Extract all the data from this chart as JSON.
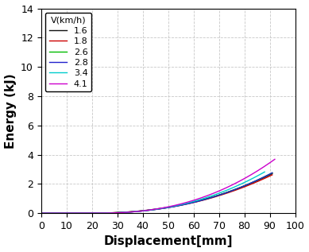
{
  "title": "",
  "xlabel": "Displacement[mm]",
  "ylabel": "Energy (kJ)",
  "xlim": [
    0,
    100
  ],
  "ylim": [
    0,
    14
  ],
  "xticks": [
    0,
    10,
    20,
    30,
    40,
    50,
    60,
    70,
    80,
    90,
    100
  ],
  "yticks": [
    0,
    2,
    4,
    6,
    8,
    10,
    12,
    14
  ],
  "legend_title": "V(km/h)",
  "series": [
    {
      "label": "1.6",
      "color": "#111111",
      "k": 0.00014,
      "n": 2.3,
      "x0": 18.0,
      "x_end": 91
    },
    {
      "label": "1.8",
      "color": "#cc0000",
      "k": 0.000138,
      "n": 2.3,
      "x0": 18.5,
      "x_end": 91
    },
    {
      "label": "2.6",
      "color": "#00bb00",
      "k": 0.000135,
      "n": 2.32,
      "x0": 19.0,
      "x_end": 91
    },
    {
      "label": "2.8",
      "color": "#2222cc",
      "k": 0.000132,
      "n": 2.33,
      "x0": 19.5,
      "x_end": 91
    },
    {
      "label": "3.4",
      "color": "#00cccc",
      "k": 0.000128,
      "n": 2.37,
      "x0": 20.0,
      "x_end": 88
    },
    {
      "label": "4.1",
      "color": "#cc00cc",
      "k": 0.00012,
      "n": 2.42,
      "x0": 20.5,
      "x_end": 92
    }
  ],
  "background_color": "#ffffff",
  "grid_color": "#c8c8c8",
  "legend_fontsize": 8,
  "axis_label_fontsize": 11,
  "tick_fontsize": 9,
  "linewidth": 1.0
}
